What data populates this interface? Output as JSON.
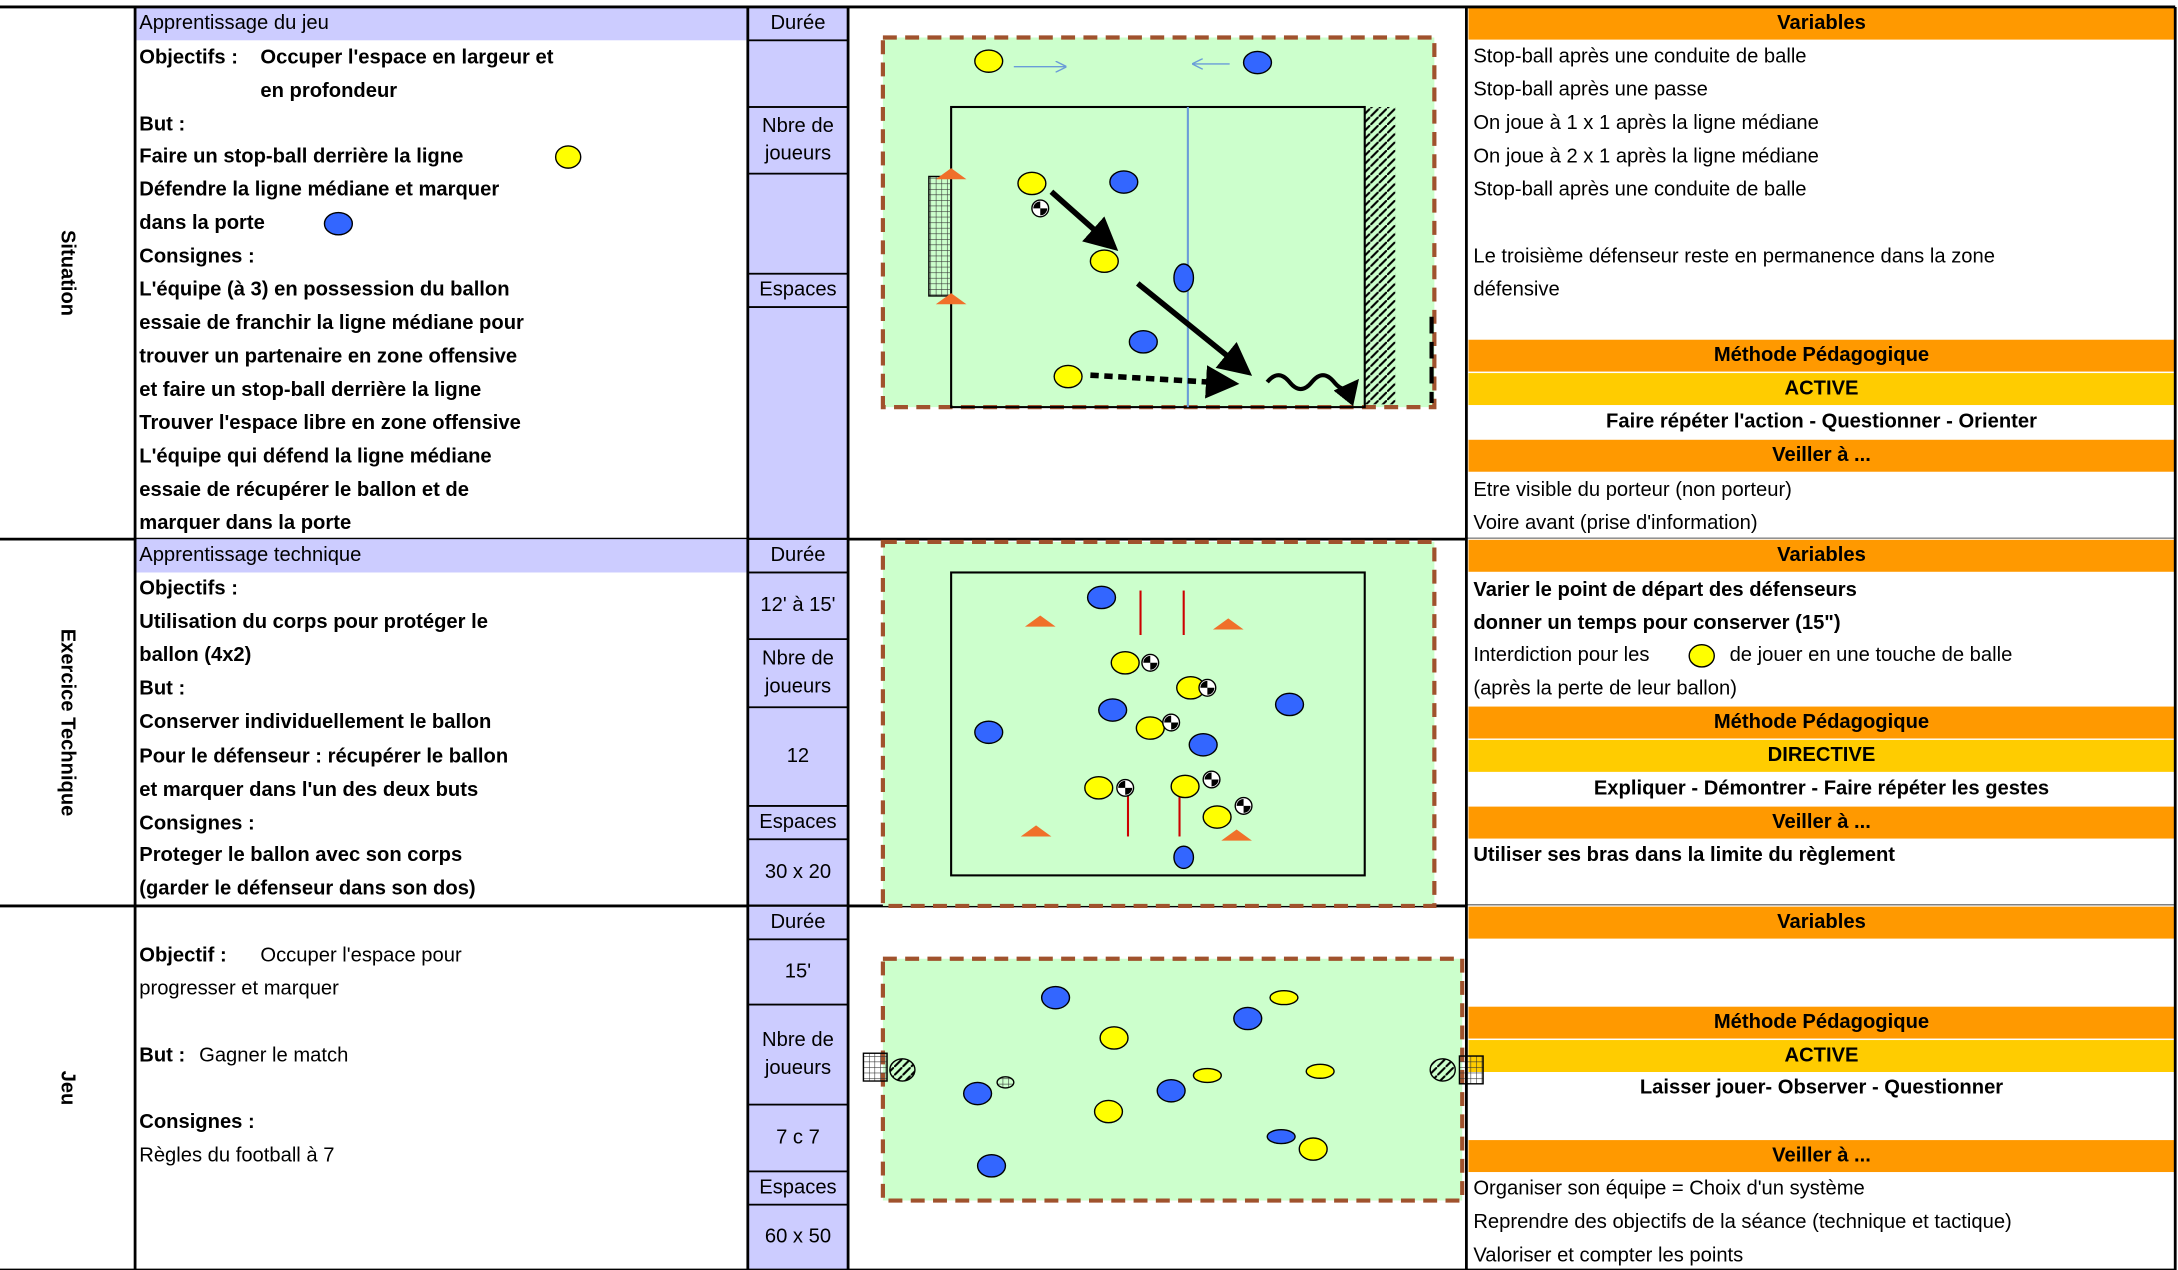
{
  "sections": [
    {
      "label": "Situation",
      "title": "Apprentissage du jeu",
      "lines": [
        [
          "Objectifs :",
          "Occuper l'espace en largeur et"
        ],
        [
          "en profondeur"
        ],
        [
          "But :"
        ],
        [
          "Faire un stop-ball derrière la ligne"
        ],
        [
          "Défendre la ligne médiane et marquer"
        ],
        [
          "dans la porte"
        ],
        [
          "Consignes :"
        ],
        [
          "L'équipe (à 3) en possession du ballon"
        ],
        [
          "essaie de franchir la ligne médiane pour"
        ],
        [
          "trouver un partenaire en zone offensive"
        ],
        [
          "et faire un stop-ball derrière la ligne"
        ],
        [
          "Trouver l'espace libre en zone offensive"
        ],
        [
          "L'équipe qui défend la ligne médiane"
        ],
        [
          "essaie de récupérer le ballon et de"
        ],
        [
          "marquer dans la porte"
        ]
      ],
      "side": [
        [
          "Durée"
        ],
        [
          "Nbre de",
          "joueurs"
        ],
        [
          "Espaces"
        ]
      ],
      "right": [
        [
          "Variables"
        ],
        [
          "Stop-ball après une conduite de balle"
        ],
        [
          "Stop-ball après une passe"
        ],
        [
          "On joue à 1 x 1 après la ligne médiane"
        ],
        [
          "On joue à 2 x 1 après la ligne médiane"
        ],
        [
          "Stop-ball après une conduite de balle"
        ],
        [
          "Le troisième défenseur reste en permanence dans la zone"
        ],
        [
          "défensive"
        ],
        [
          "Méthode Pédagogique"
        ],
        [
          "ACTIVE"
        ],
        [
          "Faire répéter l'action - Questionner - Orienter"
        ],
        [
          "Veiller à ..."
        ],
        [
          "Etre visible du porteur (non porteur)"
        ],
        [
          "Voire avant (prise d'information)"
        ]
      ]
    },
    {
      "label": "Exercice Technique",
      "title": "Apprentissage technique",
      "lines": [
        [
          "Objectifs :"
        ],
        [
          "Utilisation du corps pour protéger le"
        ],
        [
          "ballon (4x2)"
        ],
        [
          "But :"
        ],
        [
          "Conserver individuellement le ballon"
        ],
        [
          "Pour le défenseur : récupérer le ballon"
        ],
        [
          "et marquer dans l'un des deux buts"
        ],
        [
          "Consignes :"
        ],
        [
          "Proteger le ballon avec son corps"
        ],
        [
          "(garder le défenseur dans son dos)"
        ]
      ],
      "side": [
        [
          "Durée"
        ],
        [
          "12' à 15'"
        ],
        [
          "Nbre de",
          "joueurs"
        ],
        [
          "12"
        ],
        [
          "Espaces"
        ],
        [
          "30 x 20"
        ]
      ],
      "right": [
        [
          "Variables"
        ],
        [
          "Varier le point de départ des défenseurs"
        ],
        [
          "donner un temps pour conserver (15\")"
        ],
        [
          "Interdiction pour les",
          "de jouer en une touche de balle"
        ],
        [
          "(après la perte de leur ballon)"
        ],
        [
          "Méthode Pédagogique"
        ],
        [
          "DIRECTIVE"
        ],
        [
          "Expliquer - Démontrer - Faire répéter les gestes"
        ],
        [
          "Veiller à ..."
        ],
        [
          "Utiliser ses bras dans la limite du règlement"
        ]
      ]
    },
    {
      "label": "Jeu",
      "lines": [
        [
          "Objectif :",
          "Occuper l'espace pour"
        ],
        [
          "progresser et marquer"
        ],
        [
          "But :",
          "Gagner le match"
        ],
        [
          "Consignes :"
        ],
        [
          "Règles du football à 7"
        ]
      ],
      "side": [
        [
          "Durée"
        ],
        [
          "15'"
        ],
        [
          "Nbre de",
          "joueurs"
        ],
        [
          "7 c 7"
        ],
        [
          "Espaces"
        ],
        [
          "60 x 50"
        ]
      ],
      "right": [
        [
          "Variables"
        ],
        [
          "Méthode Pédagogique"
        ],
        [
          "ACTIVE"
        ],
        [
          "Laisser jouer- Observer - Questionner"
        ],
        [
          "Veiller à ..."
        ],
        [
          "Organiser son équipe = Choix d'un système"
        ],
        [
          "Reprendre des objectifs de la séance (technique et tactique)"
        ],
        [
          "Valoriser et compter les points"
        ]
      ]
    }
  ]
}
